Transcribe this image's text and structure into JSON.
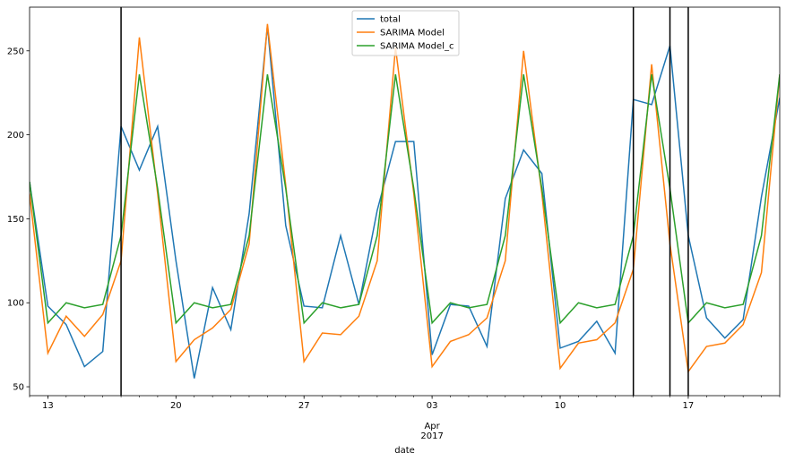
{
  "chart_data": {
    "type": "line",
    "x": [
      "2017-03-12",
      "2017-03-13",
      "2017-03-14",
      "2017-03-15",
      "2017-03-16",
      "2017-03-17",
      "2017-03-18",
      "2017-03-19",
      "2017-03-20",
      "2017-03-21",
      "2017-03-22",
      "2017-03-23",
      "2017-03-24",
      "2017-03-25",
      "2017-03-26",
      "2017-03-27",
      "2017-03-28",
      "2017-03-29",
      "2017-03-30",
      "2017-03-31",
      "2017-04-01",
      "2017-04-02",
      "2017-04-03",
      "2017-04-04",
      "2017-04-05",
      "2017-04-06",
      "2017-04-07",
      "2017-04-08",
      "2017-04-09",
      "2017-04-10",
      "2017-04-11",
      "2017-04-12",
      "2017-04-13",
      "2017-04-14",
      "2017-04-15",
      "2017-04-16",
      "2017-04-17",
      "2017-04-18",
      "2017-04-19",
      "2017-04-20",
      "2017-04-21",
      "2017-04-22"
    ],
    "series": [
      {
        "name": "total",
        "color": "#1f77b4",
        "values": [
          172,
          98,
          87,
          62,
          71,
          205,
          179,
          205,
          125,
          55,
          109,
          84,
          153,
          265,
          146,
          98,
          97,
          140,
          99,
          155,
          196,
          196,
          69,
          99,
          98,
          74,
          162,
          191,
          177,
          73,
          77,
          89,
          70,
          221,
          218,
          253,
          140,
          91,
          79,
          90,
          163,
          222
        ]
      },
      {
        "name": "SARIMA Model",
        "color": "#ff7f0e",
        "values": [
          165,
          70,
          92,
          80,
          93,
          125,
          258,
          165,
          65,
          78,
          85,
          96,
          135,
          266,
          170,
          65,
          82,
          81,
          92,
          125,
          252,
          165,
          62,
          77,
          81,
          91,
          125,
          250,
          165,
          61,
          76,
          78,
          88,
          120,
          242,
          135,
          59,
          74,
          76,
          87,
          118,
          236
        ]
      },
      {
        "name": "SARIMA Model_c",
        "color": "#2ca02c",
        "values": [
          172,
          88,
          100,
          97,
          99,
          140,
          236,
          168,
          88,
          100,
          97,
          99,
          140,
          236,
          168,
          88,
          100,
          97,
          99,
          140,
          236,
          168,
          88,
          100,
          97,
          99,
          140,
          236,
          168,
          88,
          100,
          97,
          99,
          140,
          236,
          168,
          88,
          100,
          97,
          99,
          140,
          236
        ]
      }
    ],
    "xlim": [
      "2017-03-12",
      "2017-04-22"
    ],
    "xticks": [
      {
        "value": "2017-03-13",
        "label": "13"
      },
      {
        "value": "2017-03-20",
        "label": "20"
      },
      {
        "value": "2017-03-27",
        "label": "27"
      },
      {
        "value": "2017-04-03",
        "label": "03"
      },
      {
        "value": "2017-04-10",
        "label": "10"
      },
      {
        "value": "2017-04-17",
        "label": "17"
      }
    ],
    "period_label": {
      "value": "2017-04-03",
      "lines": [
        "Apr",
        "2017"
      ]
    },
    "xlabel": "date",
    "ylim": [
      44.7,
      276
    ],
    "yticks": [
      50,
      100,
      150,
      200,
      250
    ],
    "vlines": [
      "2017-03-17",
      "2017-04-14",
      "2017-04-16",
      "2017-04-17"
    ],
    "vline_color": "#000000",
    "legend": "upper center",
    "grid": false
  }
}
